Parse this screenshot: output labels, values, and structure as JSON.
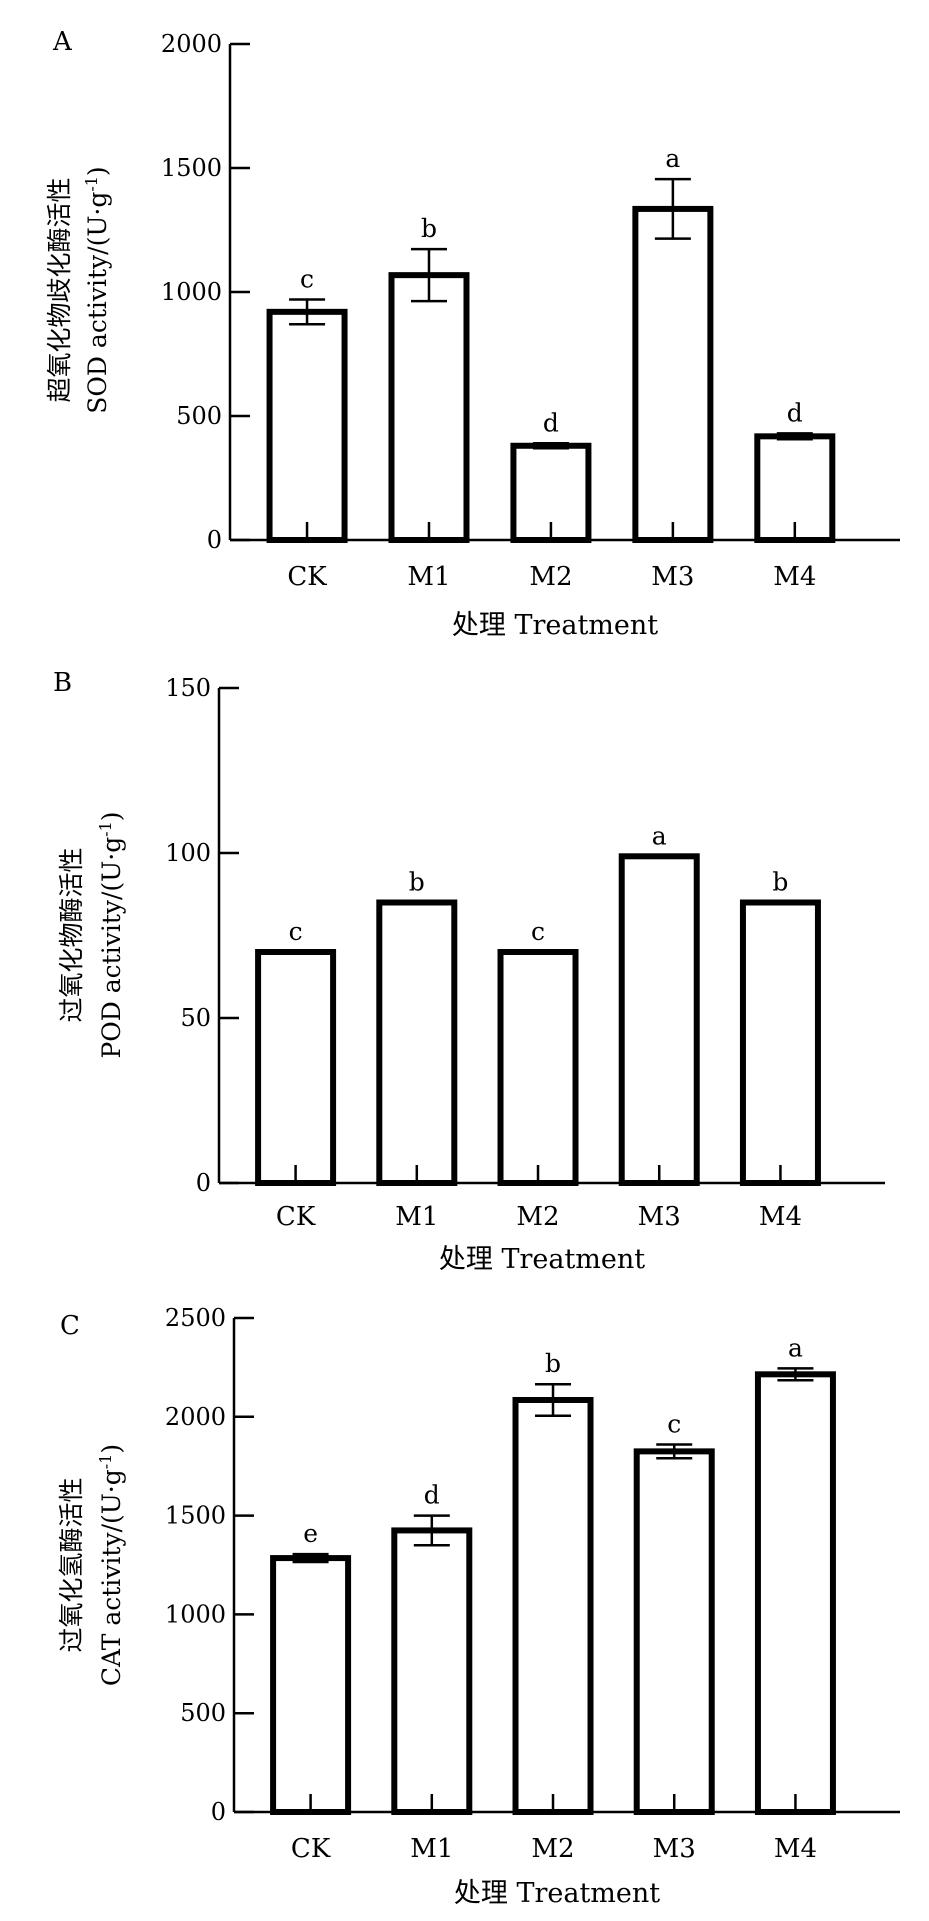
{
  "chart_data": [
    {
      "panel": "A",
      "type": "bar",
      "categories": [
        "CK",
        "M1",
        "M2",
        "M3",
        "M4"
      ],
      "values": [
        920,
        1068,
        380,
        1335,
        418
      ],
      "errors": [
        50,
        105,
        10,
        120,
        12
      ],
      "significance": [
        "c",
        "b",
        "d",
        "a",
        "d"
      ],
      "ylim": [
        0,
        2000
      ],
      "yticks": [
        "0",
        "500",
        "1000",
        "1500",
        "2000"
      ],
      "xlabel": "处理 Treatment",
      "ylabel_cn": "超氧化物歧化酶活性",
      "ylabel_en": "SOD activity/(U·g",
      "ylabel_sup": "-1",
      "ylabel_close": ")"
    },
    {
      "panel": "B",
      "type": "bar",
      "categories": [
        "CK",
        "M1",
        "M2",
        "M3",
        "M4"
      ],
      "values": [
        70,
        85,
        70,
        99,
        85
      ],
      "errors": [
        0,
        0,
        0,
        0,
        0
      ],
      "significance": [
        "c",
        "b",
        "c",
        "a",
        "b"
      ],
      "ylim": [
        0,
        150
      ],
      "yticks": [
        "0",
        "50",
        "100",
        "150"
      ],
      "xlabel": "处理 Treatment",
      "ylabel_cn": "过氧化物酶活性",
      "ylabel_en": "POD activity/(U·g",
      "ylabel_sup": "-1",
      "ylabel_close": ")"
    },
    {
      "panel": "C",
      "type": "bar",
      "categories": [
        "CK",
        "M1",
        "M2",
        "M3",
        "M4"
      ],
      "values": [
        1285,
        1425,
        2085,
        1825,
        2215
      ],
      "errors": [
        20,
        75,
        80,
        35,
        30
      ],
      "significance": [
        "e",
        "d",
        "b",
        "c",
        "a"
      ],
      "ylim": [
        0,
        2500
      ],
      "yticks": [
        "0",
        "500",
        "1000",
        "1500",
        "2000",
        "2500"
      ],
      "xlabel": "处理 Treatment",
      "ylabel_cn": "过氧化氢酶活性",
      "ylabel_en": "CAT activity/(U·g",
      "ylabel_sup": "-1",
      "ylabel_close": ")"
    }
  ]
}
